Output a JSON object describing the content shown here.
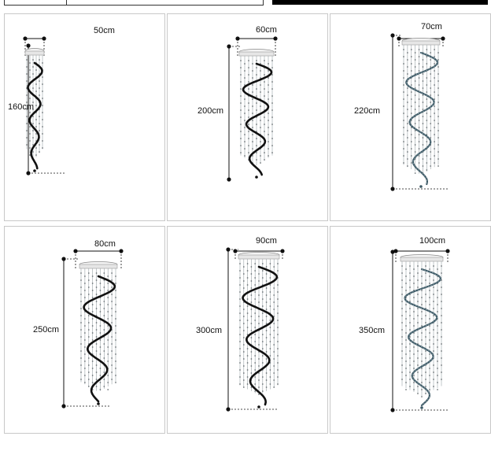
{
  "products": [
    {
      "width": "50cm",
      "height": "160cm"
    },
    {
      "width": "60cm",
      "height": "200cm"
    },
    {
      "width": "70cm",
      "height": "220cm"
    },
    {
      "width": "80cm",
      "height": "250cm"
    },
    {
      "width": "90cm",
      "height": "300cm"
    },
    {
      "width": "100cm",
      "height": "350cm"
    }
  ],
  "colors": {
    "dimension_line": "#111111",
    "spiral_dark": "#111111",
    "spiral_blue": "#3e5a66",
    "crystal": "#9aa3a8",
    "panel_border": "#c8c8c8"
  }
}
